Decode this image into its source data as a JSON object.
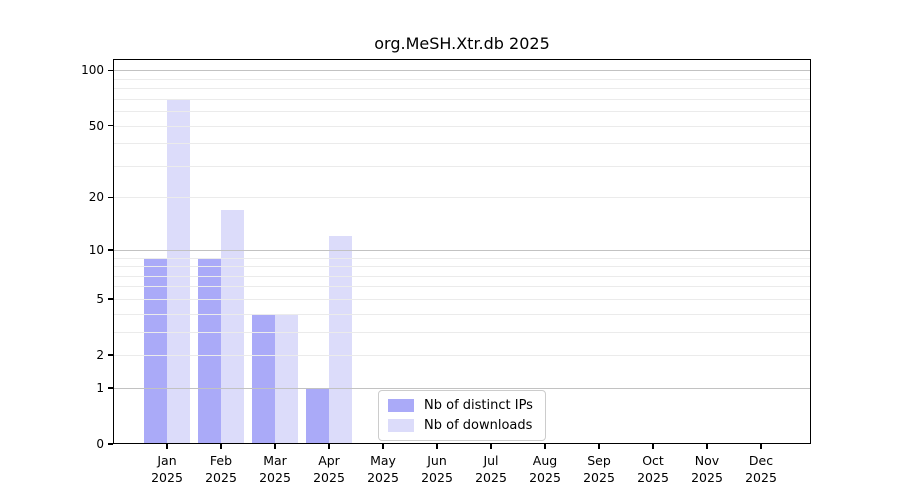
{
  "chart_data": {
    "type": "bar",
    "title": "org.MeSH.Xtr.db 2025",
    "categories": [
      "Jan",
      "Feb",
      "Mar",
      "Apr",
      "May",
      "Jun",
      "Jul",
      "Aug",
      "Sep",
      "Oct",
      "Nov",
      "Dec"
    ],
    "category_year": "2025",
    "series": [
      {
        "name": "Nb of distinct IPs",
        "color": "#aaaaf8",
        "values": [
          9,
          9,
          4,
          1,
          0,
          0,
          0,
          0,
          0,
          0,
          0,
          0
        ]
      },
      {
        "name": "Nb of downloads",
        "color": "#dcdcfa",
        "values": [
          70,
          17,
          4,
          12,
          0,
          0,
          0,
          0,
          0,
          0,
          0,
          0
        ]
      }
    ],
    "yscale": "log10(v+1)",
    "ylim": [
      0,
      115
    ],
    "yticks": [
      0,
      1,
      2,
      5,
      10,
      20,
      50,
      100
    ],
    "gridlines": {
      "major": [
        1,
        10,
        100
      ],
      "minor": [
        2,
        3,
        4,
        5,
        6,
        7,
        8,
        9,
        20,
        30,
        40,
        50,
        60,
        70,
        80,
        90
      ]
    },
    "legend": {
      "position": "inside-bottom-center",
      "items": [
        "Nb of distinct IPs",
        "Nb of downloads"
      ]
    },
    "colors": {
      "grid_major": "#c2c2c2",
      "grid_minor": "#ebebeb",
      "axis": "#000000",
      "text": "#000000",
      "background": "#ffffff"
    }
  }
}
